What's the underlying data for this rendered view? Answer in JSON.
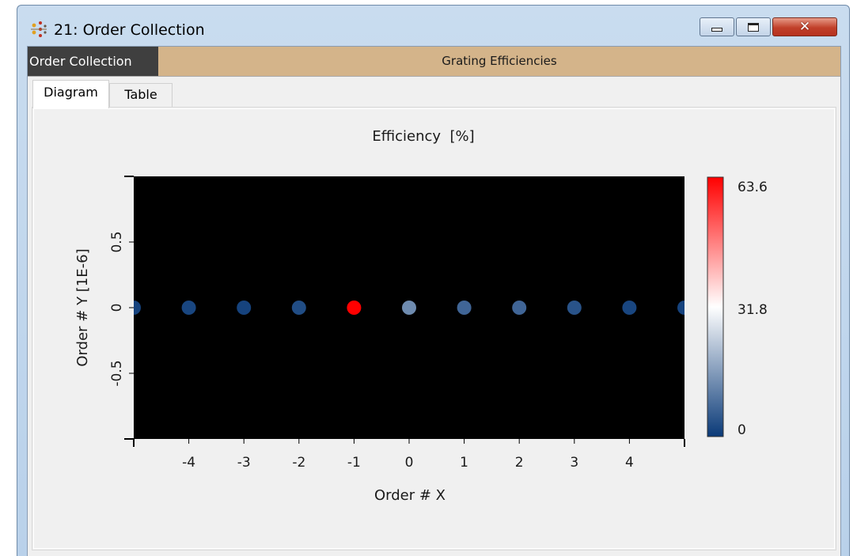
{
  "window": {
    "title": "21: Order Collection",
    "icon": "order-collection-icon",
    "controls": {
      "minimize": "minimize-icon",
      "maximize": "maximize-icon",
      "close": "close-icon",
      "close_glyph": "✕"
    }
  },
  "header": {
    "doc_label": "Order Collection",
    "section_title": "Grating Efficiencies"
  },
  "tabs": [
    {
      "label": "Diagram",
      "active": true
    },
    {
      "label": "Table",
      "active": false
    }
  ],
  "chart_data": {
    "type": "scatter",
    "title": "Efficiency  [%]",
    "xlabel": "Order # X",
    "ylabel": "Order # Y [1E-6]",
    "xlim": [
      -5,
      5
    ],
    "ylim": [
      -1,
      1
    ],
    "x_ticks": [
      -4,
      -3,
      -2,
      -1,
      0,
      1,
      2,
      3,
      4
    ],
    "y_ticks": [
      -0.5,
      0,
      0.5
    ],
    "x_tick_labels": [
      "-4",
      "-3",
      "-2",
      "-1",
      "0",
      "1",
      "2",
      "3",
      "4"
    ],
    "y_tick_labels": [
      "-0.5",
      "0",
      "0.5"
    ],
    "grid": false,
    "background": "#000000",
    "points": [
      {
        "x": -5,
        "y": 0,
        "value": 1.5
      },
      {
        "x": -4,
        "y": 0,
        "value": 2
      },
      {
        "x": -3,
        "y": 0,
        "value": 1.5
      },
      {
        "x": -2,
        "y": 0,
        "value": 3
      },
      {
        "x": -1,
        "y": 0,
        "value": 63.6
      },
      {
        "x": 0,
        "y": 0,
        "value": 13
      },
      {
        "x": 1,
        "y": 0,
        "value": 7
      },
      {
        "x": 2,
        "y": 0,
        "value": 7
      },
      {
        "x": 3,
        "y": 0,
        "value": 4
      },
      {
        "x": 4,
        "y": 0,
        "value": 2
      },
      {
        "x": 5,
        "y": 0,
        "value": 1.5
      }
    ],
    "colorbar": {
      "min": 0,
      "mid": 31.8,
      "max": 63.6,
      "labels": [
        "63.6",
        "31.8",
        "0"
      ],
      "colors": [
        "#0a3a78",
        "#ffffff",
        "#ff0000"
      ]
    }
  }
}
